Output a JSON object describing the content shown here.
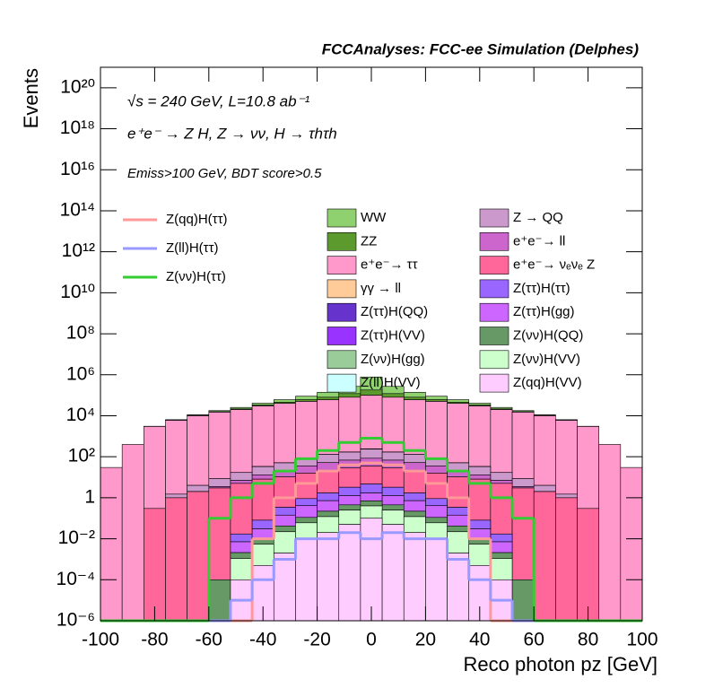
{
  "chart_data": {
    "type": "stacked-histogram",
    "title": "FCCAnalyses: FCC-ee Simulation (Delphes)",
    "annotations": [
      "√s = 240 GeV, L=10.8 ab⁻¹",
      "e⁺e⁻ → Z H, Z → νν, H → τhτh",
      "Emiss>100 GeV, BDT score>0.5"
    ],
    "x_label": "Reco photon pz [GeV]",
    "y_label": "Events",
    "log_y": true,
    "xlim": [
      -100,
      100
    ],
    "ylim": [
      1e-06,
      1e+21
    ],
    "xticks": [
      -100,
      -80,
      -60,
      -40,
      -20,
      0,
      20,
      40,
      60,
      80,
      100
    ],
    "yticks": [
      {
        "value": 1e-06,
        "label": "10⁻⁶"
      },
      {
        "value": 0.0001,
        "label": "10⁻⁴"
      },
      {
        "value": 0.01,
        "label": "10⁻²"
      },
      1,
      {
        "value": 100,
        "label": "10²"
      },
      {
        "value": 10000.0,
        "label": "10⁴"
      },
      {
        "value": 1000000.0,
        "label": "10⁶"
      },
      {
        "value": 100000000.0,
        "label": "10⁸"
      },
      {
        "value": 10000000000.0,
        "label": "10¹⁰"
      },
      {
        "value": 1000000000000.0,
        "label": "10¹²"
      },
      {
        "value": 100000000000000.0,
        "label": "10¹⁴"
      },
      {
        "value": 1e+16,
        "label": "10¹⁶"
      },
      {
        "value": 1e+18,
        "label": "10¹⁸"
      },
      {
        "value": 1e+20,
        "label": "10²⁰"
      }
    ],
    "bins": [
      -100,
      -92,
      -84,
      -76,
      -68,
      -60,
      -52,
      -44,
      -36,
      -28,
      -20,
      -12,
      -4,
      4,
      12,
      20,
      28,
      36,
      44,
      52,
      60,
      68,
      76,
      84,
      92,
      100
    ],
    "series": [
      {
        "name": "WW",
        "color": "#8fd16f",
        "values": [
          0,
          0,
          50,
          300,
          800,
          2000,
          4000,
          8000,
          15000,
          30000,
          60000,
          150000,
          600000,
          150000,
          60000,
          30000,
          15000,
          8000,
          4000,
          2000,
          800,
          300,
          50,
          0,
          0
        ]
      },
      {
        "name": "ZZ",
        "color": "#5c9a2e",
        "values": [
          0,
          0,
          30,
          150,
          400,
          800,
          1500,
          3000,
          6000,
          10000,
          20000,
          40000,
          80000,
          40000,
          20000,
          10000,
          6000,
          3000,
          1500,
          800,
          400,
          150,
          30,
          0,
          0
        ]
      },
      {
        "name": "e⁺e⁻→ ττ",
        "color": "#ff99cc",
        "values": [
          30,
          400,
          3000,
          6000,
          10000,
          15000,
          20000,
          30000,
          40000,
          50000,
          60000,
          80000,
          100000,
          80000,
          60000,
          50000,
          40000,
          30000,
          20000,
          15000,
          10000,
          6000,
          3000,
          400,
          30
        ]
      },
      {
        "name": "γγ → ll",
        "color": "#ffcc99",
        "values": [
          0,
          0,
          0,
          0,
          0,
          0,
          0,
          0,
          0.01,
          0.1,
          0.5,
          1,
          2,
          1,
          0.5,
          0.1,
          0.01,
          0,
          0,
          0,
          0,
          0,
          0,
          0,
          0
        ]
      },
      {
        "name": "Z(ττ)H(QQ)",
        "color": "#6633cc",
        "values": [
          0,
          0,
          0,
          0,
          0,
          0,
          0,
          0.005,
          0.02,
          0.1,
          0.3,
          0.5,
          0.8,
          0.5,
          0.3,
          0.1,
          0.02,
          0.005,
          0,
          0,
          0,
          0,
          0,
          0,
          0
        ]
      },
      {
        "name": "Z(ττ)H(VV)",
        "color": "#9933ff",
        "values": [
          0,
          0,
          0,
          0,
          0,
          0,
          0,
          0.01,
          0.05,
          0.2,
          0.5,
          0.8,
          1,
          0.8,
          0.5,
          0.2,
          0.05,
          0.01,
          0,
          0,
          0,
          0,
          0,
          0,
          0
        ]
      },
      {
        "name": "Z(νν)H(gg)",
        "color": "#99cc99",
        "values": [
          0,
          0,
          0,
          0,
          0,
          0,
          0.001,
          0.01,
          0.05,
          0.2,
          0.5,
          1,
          2,
          1,
          0.5,
          0.2,
          0.05,
          0.01,
          0.001,
          0,
          0,
          0,
          0,
          0,
          0
        ]
      },
      {
        "name": "Z(ll)H(VV)",
        "color": "#ccffff",
        "values": [
          0,
          0,
          0,
          0,
          0,
          0,
          0,
          0,
          0.0001,
          0.0005,
          0.002,
          0.005,
          0.01,
          0.005,
          0.002,
          0.0005,
          0.0001,
          0,
          0,
          0,
          0,
          0,
          0,
          0,
          0
        ]
      },
      {
        "name": "Z → QQ",
        "color": "#cc99cc",
        "values": [
          0,
          0,
          0,
          0.5,
          2,
          5,
          10,
          20,
          30,
          50,
          80,
          100,
          150,
          100,
          80,
          50,
          30,
          20,
          10,
          5,
          2,
          0.5,
          0,
          0,
          0
        ]
      },
      {
        "name": "e⁺e⁻→ ll",
        "color": "#cc66cc",
        "values": [
          0,
          0,
          0,
          0,
          0.01,
          0.5,
          2,
          5,
          10,
          20,
          30,
          40,
          50,
          40,
          30,
          20,
          10,
          5,
          2,
          0.5,
          0.01,
          0,
          0,
          0,
          0
        ]
      },
      {
        "name": "e⁺e⁻→ νₑνₑ Z",
        "color": "#ff6699",
        "values": [
          0,
          0,
          0.3,
          1,
          2,
          3,
          5,
          8,
          10,
          15,
          20,
          25,
          30,
          25,
          20,
          15,
          10,
          8,
          5,
          3,
          2,
          1,
          0.3,
          0,
          0
        ]
      },
      {
        "name": "Z(ττ)H(ττ)",
        "color": "#9966ff",
        "values": [
          0,
          0,
          0,
          0,
          0,
          0,
          0.01,
          0.05,
          0.2,
          0.5,
          1,
          2,
          3,
          2,
          1,
          0.5,
          0.2,
          0.05,
          0.01,
          0,
          0,
          0,
          0,
          0,
          0
        ]
      },
      {
        "name": "Z(ττ)H(gg)",
        "color": "#cc66ff",
        "values": [
          0,
          0,
          0,
          0,
          0,
          0,
          0.005,
          0.02,
          0.1,
          0.3,
          0.5,
          0.8,
          1,
          0.8,
          0.5,
          0.3,
          0.1,
          0.02,
          0.005,
          0,
          0,
          0,
          0,
          0,
          0
        ]
      },
      {
        "name": "Z(νν)H(QQ)",
        "color": "#669966",
        "values": [
          0,
          0,
          0,
          0,
          0,
          0.0001,
          0.001,
          0.005,
          0.02,
          0.05,
          0.1,
          0.2,
          0.3,
          0.2,
          0.1,
          0.05,
          0.02,
          0.005,
          0.001,
          0.0001,
          0,
          0,
          0,
          0,
          0
        ]
      },
      {
        "name": "Z(νν)H(VV)",
        "color": "#ccffcc",
        "values": [
          0,
          0,
          0,
          0,
          0,
          0,
          0.001,
          0.005,
          0.02,
          0.05,
          0.1,
          0.2,
          0.3,
          0.2,
          0.1,
          0.05,
          0.02,
          0.005,
          0.001,
          0,
          0,
          0,
          0,
          0,
          0
        ]
      },
      {
        "name": "Z(qq)H(VV)",
        "color": "#ffccff",
        "values": [
          0,
          0,
          0,
          0,
          0,
          0,
          0.0001,
          0.0005,
          0.002,
          0.01,
          0.02,
          0.05,
          0.1,
          0.05,
          0.02,
          0.01,
          0.002,
          0.0005,
          0.0001,
          0,
          0,
          0,
          0,
          0,
          0
        ]
      }
    ],
    "lines": [
      {
        "name": "Z(qq)H(ττ)",
        "color": "#ff9999",
        "values": [
          0,
          0,
          0,
          0,
          0,
          0,
          0,
          0.01,
          1,
          5,
          20,
          40,
          50,
          40,
          20,
          5,
          1,
          0.01,
          0,
          0,
          0,
          0,
          0,
          0,
          0
        ]
      },
      {
        "name": "Z(ll)H(ττ)",
        "color": "#9999ff",
        "values": [
          0,
          0,
          0,
          0,
          0,
          0,
          1e-05,
          0.0001,
          0.001,
          0.01,
          0.01,
          0.02,
          0.01,
          0.02,
          0.01,
          0.01,
          0.001,
          0.0001,
          1e-05,
          0,
          0,
          0,
          0,
          0,
          0
        ]
      },
      {
        "name": "Z(νν)H(ττ)",
        "color": "#33cc33",
        "values": [
          0,
          0,
          0,
          0,
          0,
          0.1,
          1,
          5,
          20,
          80,
          200,
          500,
          800,
          500,
          200,
          80,
          20,
          5,
          1,
          0.1,
          0,
          0,
          0,
          0,
          0
        ]
      }
    ]
  }
}
